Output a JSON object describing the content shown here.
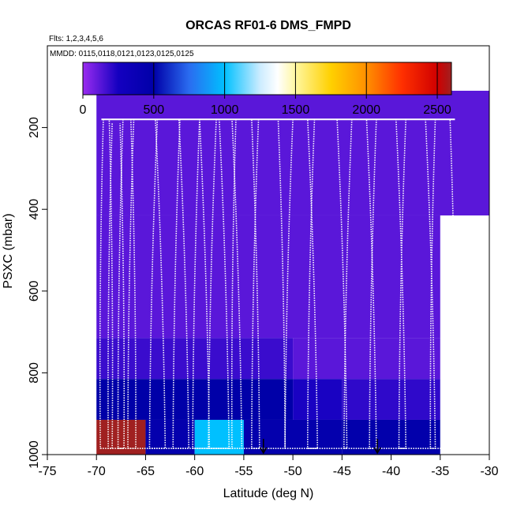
{
  "chart_data": {
    "type": "heatmap",
    "title": "ORCAS RF01-6 DMS_FMPD",
    "subtitle_flights": "Flts: 1,2,3,4,5,6",
    "subtitle_dates": "MMDD: 0115,0118,0121,0123,0125,0125",
    "xlabel": "Latitude (deg N)",
    "ylabel": "PSXC (mbar)",
    "xlim": [
      -75,
      -30
    ],
    "ylim": [
      1000,
      0
    ],
    "x_ticks": [
      -75,
      -70,
      -65,
      -60,
      -55,
      -50,
      -45,
      -40,
      -35,
      -30
    ],
    "x_tick_labels": [
      "-75",
      "-70",
      "-65",
      "-60",
      "-55",
      "-50",
      "-45",
      "-40",
      "-35",
      "-30"
    ],
    "y_ticks": [
      200,
      400,
      600,
      800,
      1000
    ],
    "y_tick_labels": [
      "200",
      "400",
      "600",
      "800",
      "1000"
    ],
    "colorbar": {
      "range": [
        0,
        2600
      ],
      "ticks": [
        0,
        500,
        1000,
        1500,
        2000,
        2500
      ],
      "tick_labels": [
        "0",
        "500",
        "1000",
        "1500",
        "2000",
        "2500"
      ],
      "stops": [
        {
          "value": 0,
          "color": "#9a2cf0"
        },
        {
          "value": 250,
          "color": "#1400c0"
        },
        {
          "value": 500,
          "color": "#0000a8"
        },
        {
          "value": 750,
          "color": "#2a6cf0"
        },
        {
          "value": 1000,
          "color": "#00c0ff"
        },
        {
          "value": 1250,
          "color": "#ccecff"
        },
        {
          "value": 1375,
          "color": "#ffffff"
        },
        {
          "value": 1500,
          "color": "#fff7a0"
        },
        {
          "value": 1750,
          "color": "#ffd000"
        },
        {
          "value": 2000,
          "color": "#ff9000"
        },
        {
          "value": 2250,
          "color": "#ff3000"
        },
        {
          "value": 2500,
          "color": "#d00000"
        },
        {
          "value": 2600,
          "color": "#a02020"
        }
      ]
    },
    "cells": [
      {
        "lat": [
          -70,
          -30
        ],
        "p": [
          110,
          415
        ],
        "value": 120
      },
      {
        "lat": [
          -70,
          -35
        ],
        "p": [
          415,
          715
        ],
        "value": 120
      },
      {
        "lat": [
          -70,
          -50
        ],
        "p": [
          715,
          815
        ],
        "value": 180
      },
      {
        "lat": [
          -50,
          -35
        ],
        "p": [
          715,
          815
        ],
        "value": 120
      },
      {
        "lat": [
          -70,
          -50
        ],
        "p": [
          815,
          915
        ],
        "value": 500
      },
      {
        "lat": [
          -50,
          -45
        ],
        "p": [
          815,
          915
        ],
        "value": 240
      },
      {
        "lat": [
          -45,
          -35
        ],
        "p": [
          815,
          915
        ],
        "value": 200
      },
      {
        "lat": [
          -70,
          -65
        ],
        "p": [
          915,
          1000
        ],
        "value": 2600
      },
      {
        "lat": [
          -65,
          -60
        ],
        "p": [
          915,
          1000
        ],
        "value": 450
      },
      {
        "lat": [
          -60,
          -55
        ],
        "p": [
          915,
          1000
        ],
        "value": 1000
      },
      {
        "lat": [
          -55,
          -45
        ],
        "p": [
          915,
          1000
        ],
        "value": 450
      },
      {
        "lat": [
          -45,
          -35
        ],
        "p": [
          915,
          1000
        ],
        "value": 470
      }
    ],
    "flight_profiles": [
      {
        "lat_top": [
          -69.3,
          -68.7
        ],
        "lat_bottom": [
          -69.6,
          -68.4
        ],
        "p_top": 180
      },
      {
        "lat_top": [
          -68.4,
          -67.6
        ],
        "lat_bottom": [
          -68.8,
          -67.2
        ],
        "p_top": 190
      },
      {
        "lat_top": [
          -67.3,
          -66.5
        ],
        "lat_bottom": [
          -67.8,
          -66.0
        ],
        "p_top": 180
      },
      {
        "lat_top": [
          -66.2,
          -64.0
        ],
        "lat_bottom": [
          -66.8,
          -63.0
        ],
        "p_top": 180
      },
      {
        "lat_top": [
          -63.8,
          -61.6
        ],
        "lat_bottom": [
          -64.6,
          -60.6
        ],
        "p_top": 180
      },
      {
        "lat_top": [
          -61.5,
          -59.5
        ],
        "lat_bottom": [
          -62.2,
          -58.5
        ],
        "p_top": 180
      },
      {
        "lat_top": [
          -59.5,
          -57.5
        ],
        "lat_bottom": [
          -60.2,
          -56.5
        ],
        "p_top": 180
      },
      {
        "lat_top": [
          -57.8,
          -56.2
        ],
        "lat_bottom": [
          -58.6,
          -55.2
        ],
        "p_top": 180
      },
      {
        "lat_top": [
          -55.8,
          -54.2
        ],
        "lat_bottom": [
          -56.2,
          -53.4
        ],
        "p_top": 180
      },
      {
        "lat_top": [
          -53.5,
          -51.5
        ],
        "lat_bottom": [
          -54.2,
          -50.8
        ],
        "p_top": 180
      },
      {
        "lat_top": [
          -50.0,
          -48.5
        ],
        "lat_bottom": [
          -50.8,
          -47.5
        ],
        "p_top": 180
      },
      {
        "lat_top": [
          -47.8,
          -45.5
        ],
        "lat_bottom": [
          -48.5,
          -44.5
        ],
        "p_top": 180
      },
      {
        "lat_top": [
          -44.0,
          -42.5
        ],
        "lat_bottom": [
          -44.8,
          -41.5
        ],
        "p_top": 180
      },
      {
        "lat_top": [
          -41.5,
          -39.5
        ],
        "lat_bottom": [
          -42.2,
          -38.5
        ],
        "p_top": 180
      },
      {
        "lat_top": [
          -38.5,
          -36.5
        ],
        "lat_bottom": [
          -39.2,
          -35.5
        ],
        "p_top": 180
      },
      {
        "lat_top": [
          -35.5,
          -34.0
        ],
        "lat_bottom": [
          -36.0,
          -33.4
        ],
        "p_top": 180
      }
    ],
    "flight_track_top_p": 180,
    "flight_track_lat_range": [
      -69.5,
      -33.5
    ],
    "bottom_arrows_lat": [
      -53,
      -41.4
    ]
  }
}
